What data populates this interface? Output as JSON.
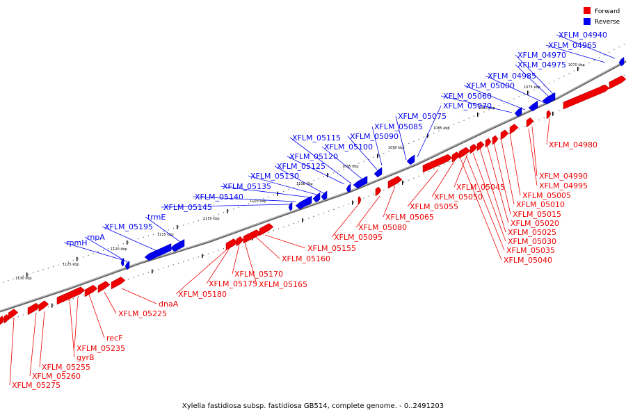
{
  "caption": "Xylella fastidiosa subsp. fastidiosa GB514, complete genome. - 0..2491203",
  "legend": [
    {
      "label": "Forward",
      "color": "#ee0000"
    },
    {
      "label": "Reverse",
      "color": "#0000ee"
    }
  ],
  "colors": {
    "forward": "#ee0000",
    "reverse": "#0000ee",
    "backbone": "#777777"
  },
  "ticks": [
    "1070 kbp",
    "1075 kbp",
    "1080 kbp",
    "1085 kbp",
    "1090 kbp",
    "1095 kbp",
    "1100 kbp",
    "1105 kbp",
    "1110 kbp",
    "1115 kbp",
    "1120 kbp",
    "1125 kbp",
    "1130 kbp"
  ],
  "reverse_genes": [
    "XFLM_04940",
    "XFLM_04965",
    "XFLM_04970",
    "XFLM_04975",
    "XFLM_04985",
    "XFLM_05000",
    "XFLM_05060",
    "XFLM_05070",
    "XFLM_05075",
    "XFLM_05085",
    "XFLM_05090",
    "XFLM_05100",
    "XFLM_05115",
    "XFLM_05120",
    "XFLM_05125",
    "XFLM_05130",
    "XFLM_05135",
    "XFLM_05140",
    "XFLM_05145",
    "trmE",
    "XFLM_05195",
    "rnpA",
    "rpmH"
  ],
  "forward_genes": [
    "XFLM_04980",
    "XFLM_04990",
    "XFLM_04995",
    "XFLM_05005",
    "XFLM_05010",
    "XFLM_05015",
    "XFLM_05020",
    "XFLM_05025",
    "XFLM_05030",
    "XFLM_05035",
    "XFLM_05040",
    "XFLM_05045",
    "XFLM_05050",
    "XFLM_05055",
    "XFLM_05065",
    "XFLM_05080",
    "XFLM_05095",
    "XFLM_05155",
    "XFLM_05160",
    "XFLM_05165",
    "XFLM_05170",
    "XFLM_05175",
    "XFLM_05180",
    "dnaA",
    "XFLM_05225",
    "recF",
    "XFLM_05235",
    "gyrB",
    "XFLM_05255",
    "XFLM_05260",
    "XFLM_05275"
  ]
}
